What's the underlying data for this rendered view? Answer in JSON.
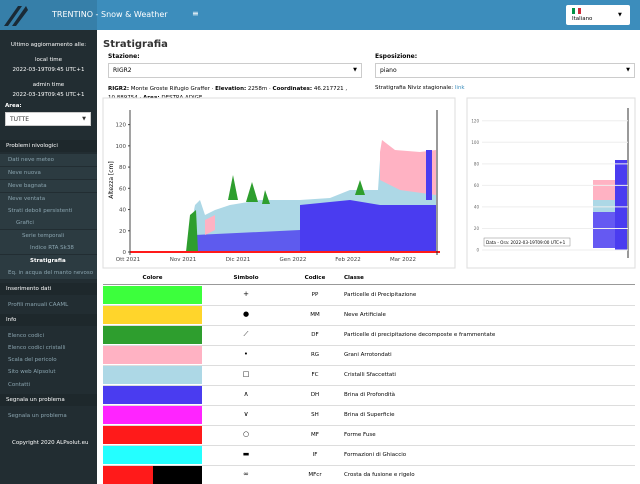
{
  "header": {
    "title": "TRENTINO - Snow & Weather",
    "language": "Italiano"
  },
  "sidebar": {
    "update_label": "Ultimo aggiornamento alle:",
    "local_time_label": "local time",
    "local_time": "2022-03-19T09:45 UTC+1",
    "admin_time_label": "admin time",
    "admin_time": "2022-03-19T09:45 UTC+1",
    "area_label": "Area:",
    "area_value": "TUTTE",
    "menu": [
      "Problemi nivologici",
      "Dati neve meteo",
      "Neve nuova",
      "Neve bagnata",
      "Neve ventata",
      "Strati deboli persistenti",
      "Grafici",
      "Serie temporali",
      "Indice RTA Sk38",
      "Stratigrafia",
      "Eq. in acqua del manto nevoso",
      "Inserimento dati",
      "Profili manuali CAAML",
      "Info",
      "Elenco codici",
      "Elenco codici cristalli",
      "Scala del pericolo",
      "Sito web Alpsolut",
      "Contatti",
      "Segnala un problema",
      "Segnala un problema"
    ],
    "copyright": "Copyright 2020 ALPsolut.eu"
  },
  "content": {
    "title": "Stratigrafia",
    "station_label": "Stazione:",
    "station_value": "RIGR2",
    "exposure_label": "Esposizione:",
    "exposure_value": "piano",
    "station_info": [
      {
        "text": "RIGR2:",
        "bold": true
      },
      {
        "text": " Monte Groste Rifugio Graffer · ",
        "bold": false
      },
      {
        "text": "Elevation:",
        "bold": true
      },
      {
        "text": " 2258m · ",
        "bold": false
      },
      {
        "text": "Coordinates:",
        "bold": true
      },
      {
        "text": " 46.217721 , 10.889754 · ",
        "bold": false
      },
      {
        "text": "Area:",
        "bold": true
      },
      {
        "text": " DESTRA ADIGE",
        "bold": false
      }
    ],
    "niviz_label": "Stratigrafia Niviz stagionale:",
    "niviz_link": "link",
    "chart": {
      "y_axis_label": "Altezza [cm]",
      "ylim": [
        0,
        130
      ],
      "yticks": [
        0,
        20,
        40,
        60,
        80,
        100,
        120
      ],
      "xticks": [
        "Ott 2021",
        "Nov 2021",
        "Dic 2021",
        "Gen 2022",
        "Feb 2022",
        "Mar 2022"
      ]
    },
    "profile": {
      "ylim": [
        0,
        130
      ],
      "yticks": [
        0,
        20,
        40,
        60,
        80,
        100,
        120
      ],
      "legend": "Data - Ora: 2022-03-19T09:00 UTC+1"
    },
    "table": {
      "headers": [
        "Colore",
        "Simbolo",
        "Codice",
        "Classe"
      ],
      "rows": [
        {
          "color": "#3cff3c",
          "symbol": "+",
          "code": "PP",
          "class": "Particelle di Precipitazione"
        },
        {
          "color": "#ffd52b",
          "symbol": "●",
          "code": "MM",
          "class": "Neve Artificiale"
        },
        {
          "color": "#2e9e2e",
          "symbol": "⟋",
          "code": "DF",
          "class": "Particelle di precipitazione decomposte e frammentate"
        },
        {
          "color": "#ffb2c3",
          "symbol": "•",
          "code": "RG",
          "class": "Grani Arrotondati"
        },
        {
          "color": "#add8e6",
          "symbol": "□",
          "code": "FC",
          "class": "Cristalli Sfaccettati"
        },
        {
          "color": "#4a3cf0",
          "symbol": "∧",
          "code": "DH",
          "class": "Brina di Profondità"
        },
        {
          "color": "#ff24ff",
          "symbol": "∨",
          "code": "SH",
          "class": "Brina di Superficie"
        },
        {
          "color": "#ff1a1a",
          "symbol": "○",
          "code": "MF",
          "class": "Forme Fuse"
        },
        {
          "color": "#24ffff",
          "symbol": "▬",
          "code": "IF",
          "class": "Formazioni di Ghiaccio"
        },
        {
          "color": [
            "#ff1a1a",
            "#000000"
          ],
          "symbol": "∞",
          "code": "MFcr",
          "class": "Crosta da fusione e rigelo"
        }
      ]
    }
  }
}
